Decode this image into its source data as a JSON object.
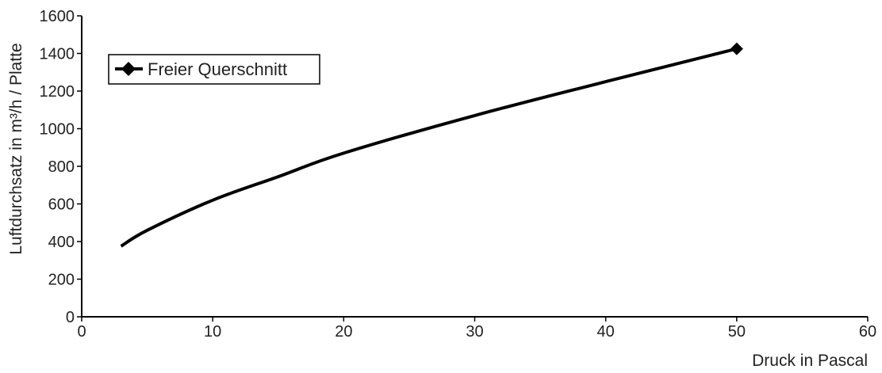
{
  "chart_data": {
    "type": "line",
    "title": "",
    "xlabel": "Druck in Pascal",
    "ylabel": "Luftdurchsatz in m³/h / Platte",
    "xlim": [
      0,
      60
    ],
    "ylim": [
      0,
      1600
    ],
    "x_ticks": [
      "0",
      "10",
      "20",
      "30",
      "40",
      "50",
      "60"
    ],
    "y_ticks": [
      "0",
      "200",
      "400",
      "600",
      "800",
      "1000",
      "1200",
      "1400",
      "1600"
    ],
    "grid": false,
    "legend_position": "top-left",
    "series": [
      {
        "name": "Freier Querschnitt",
        "color": "#000000",
        "marker": "diamond",
        "x": [
          3,
          5,
          10,
          15,
          20,
          30,
          40,
          50
        ],
        "y": [
          375,
          460,
          620,
          745,
          870,
          1070,
          1250,
          1425
        ]
      }
    ]
  }
}
